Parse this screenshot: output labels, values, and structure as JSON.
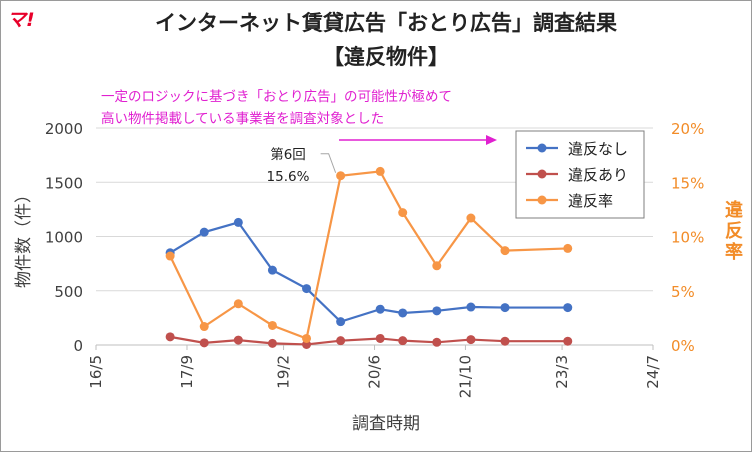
{
  "logo": "マ!",
  "title_line1": "インターネット賃貸広告「おとり広告」調査結果",
  "title_line2": "【違反物件】",
  "note_line1": "一定のロジックに基づき「おとり広告」の可能性が極めて",
  "note_line2": "高い物件掲載している事業者を調査対象とした",
  "annotation": {
    "line1": "第6回",
    "line2": "15.6%"
  },
  "chart_data": {
    "type": "line",
    "xlabel": "調査時期",
    "ylabel": "物件数（件）",
    "y2label": "違反率",
    "x_ticks": [
      "16/5",
      "17/9",
      "19/2",
      "20/6",
      "21/10",
      "23/3",
      "24/7"
    ],
    "x_tick_values": [
      2016.333,
      2017.667,
      2019.083,
      2020.417,
      2021.75,
      2023.167,
      2024.5
    ],
    "xlim": [
      2016.333,
      2024.5
    ],
    "ylim": [
      0,
      2000
    ],
    "y_ticks": [
      0,
      500,
      1000,
      1500,
      2000
    ],
    "y2lim": [
      0,
      20
    ],
    "y2_ticks": [
      "0%",
      "5%",
      "10%",
      "15%",
      "20%"
    ],
    "y2_tick_values": [
      0,
      5,
      10,
      15,
      20
    ],
    "legend_position": "top-right",
    "x": [
      2017.42,
      2017.92,
      2018.42,
      2018.92,
      2019.42,
      2019.92,
      2020.5,
      2020.83,
      2021.33,
      2021.83,
      2022.33,
      2023.25
    ],
    "series": [
      {
        "name": "違反なし",
        "color": "#4472c4",
        "axis": "left",
        "values": [
          850,
          1040,
          1130,
          690,
          520,
          215,
          330,
          295,
          315,
          350,
          345,
          345
        ]
      },
      {
        "name": "違反あり",
        "color": "#c0504d",
        "axis": "left",
        "values": [
          75,
          20,
          45,
          15,
          5,
          40,
          60,
          40,
          25,
          50,
          35,
          35
        ]
      },
      {
        "name": "違反率",
        "color": "#f79646",
        "axis": "right",
        "values": [
          8.2,
          1.7,
          3.8,
          1.8,
          0.6,
          15.6,
          16.0,
          12.2,
          7.3,
          11.7,
          8.7,
          8.9
        ]
      }
    ]
  }
}
